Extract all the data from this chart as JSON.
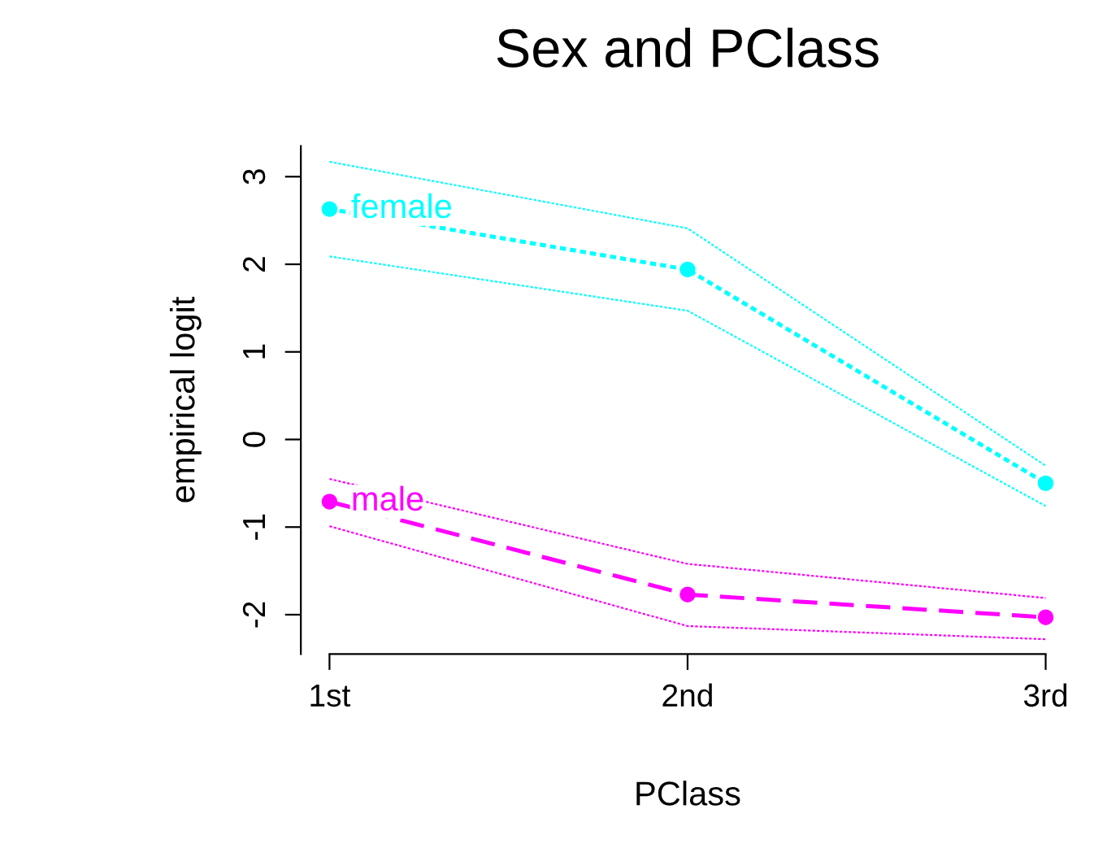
{
  "chart_data": {
    "type": "line",
    "title": "Sex and PClass",
    "xlabel": "PClass",
    "ylabel": "empirical logit",
    "categories": [
      "1st",
      "2nd",
      "3rd"
    ],
    "ylim": [
      -2.45,
      3.35
    ],
    "yticks": [
      {
        "value": -2,
        "label": "-2"
      },
      {
        "value": -1,
        "label": "-1"
      },
      0,
      1,
      2,
      3
    ],
    "grid": false,
    "legend": false,
    "series": [
      {
        "name": "female",
        "color": "#00ffff",
        "line_style": "dotted",
        "marker": "circle",
        "values": [
          2.63,
          1.94,
          -0.5
        ]
      },
      {
        "color": "#00ffff",
        "line_style": "dotted",
        "marker": "none",
        "values": [
          3.17,
          2.41,
          -0.3
        ]
      },
      {
        "color": "#00ffff",
        "line_style": "dotted",
        "marker": "none",
        "values": [
          2.09,
          1.47,
          -0.76
        ]
      },
      {
        "name": "male",
        "color": "#ff00ff",
        "line_style": "dashed",
        "marker": "circle",
        "values": [
          -0.71,
          -1.77,
          -2.03
        ]
      },
      {
        "color": "#ff00ff",
        "line_style": "dotted",
        "marker": "none",
        "values": [
          -0.45,
          -1.42,
          -1.81
        ]
      },
      {
        "color": "#ff00ff",
        "line_style": "dotted",
        "marker": "none",
        "values": [
          -0.99,
          -2.13,
          -2.28
        ]
      }
    ]
  }
}
